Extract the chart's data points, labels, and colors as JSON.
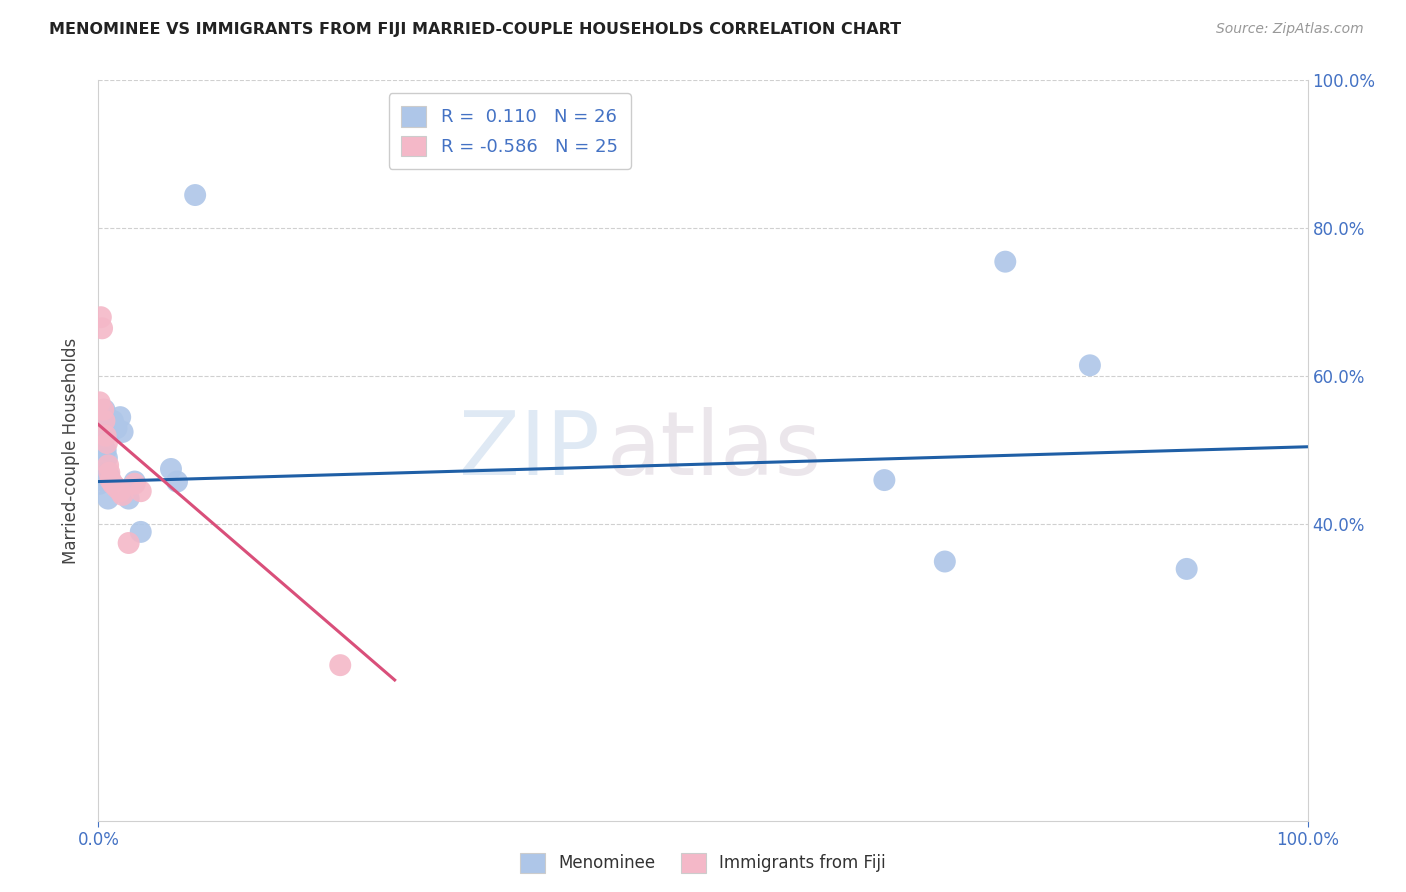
{
  "title": "MENOMINEE VS IMMIGRANTS FROM FIJI MARRIED-COUPLE HOUSEHOLDS CORRELATION CHART",
  "source": "Source: ZipAtlas.com",
  "ylabel": "Married-couple Households",
  "watermark_zip": "ZIP",
  "watermark_atlas": "atlas",
  "menominee_color": "#aec6e8",
  "fiji_color": "#f4b8c8",
  "line_blue": "#1f5fa6",
  "line_pink": "#d94f7a",
  "tick_color": "#4472c4",
  "grid_color": "#d0d0d0",
  "title_color": "#222222",
  "source_color": "#999999",
  "menominee_x": [
    0.001,
    0.002,
    0.003,
    0.004,
    0.005,
    0.006,
    0.007,
    0.008,
    0.009,
    0.01,
    0.012,
    0.015,
    0.018,
    0.02,
    0.025,
    0.03,
    0.035,
    0.06,
    0.065,
    0.08,
    0.65,
    0.7,
    0.75,
    0.82,
    0.9
  ],
  "menominee_y": [
    0.455,
    0.47,
    0.46,
    0.53,
    0.555,
    0.5,
    0.49,
    0.435,
    0.465,
    0.458,
    0.54,
    0.53,
    0.545,
    0.525,
    0.435,
    0.458,
    0.39,
    0.475,
    0.458,
    0.845,
    0.46,
    0.35,
    0.755,
    0.615,
    0.34
  ],
  "fiji_x": [
    0.001,
    0.002,
    0.003,
    0.004,
    0.005,
    0.006,
    0.007,
    0.008,
    0.009,
    0.01,
    0.012,
    0.015,
    0.018,
    0.02,
    0.025,
    0.03,
    0.035,
    0.2
  ],
  "fiji_y": [
    0.565,
    0.68,
    0.665,
    0.555,
    0.54,
    0.52,
    0.51,
    0.48,
    0.47,
    0.46,
    0.455,
    0.45,
    0.445,
    0.44,
    0.375,
    0.455,
    0.445,
    0.21
  ],
  "R_menominee": 0.11,
  "N_menominee": 26,
  "R_fiji": -0.586,
  "N_fiji": 25,
  "blue_line_x": [
    0.0,
    1.0
  ],
  "blue_line_y": [
    0.458,
    0.505
  ],
  "pink_line_x": [
    0.0,
    0.245
  ],
  "pink_line_y": [
    0.535,
    0.19
  ],
  "xlim": [
    0.0,
    1.0
  ],
  "ylim": [
    0.0,
    1.0
  ],
  "ytick_vals": [
    0.4,
    0.6,
    0.8,
    1.0
  ],
  "ytick_labels": [
    "40.0%",
    "60.0%",
    "80.0%",
    "100.0%"
  ],
  "xtick_vals": [
    0.0,
    1.0
  ],
  "xtick_labels": [
    "0.0%",
    "100.0%"
  ]
}
